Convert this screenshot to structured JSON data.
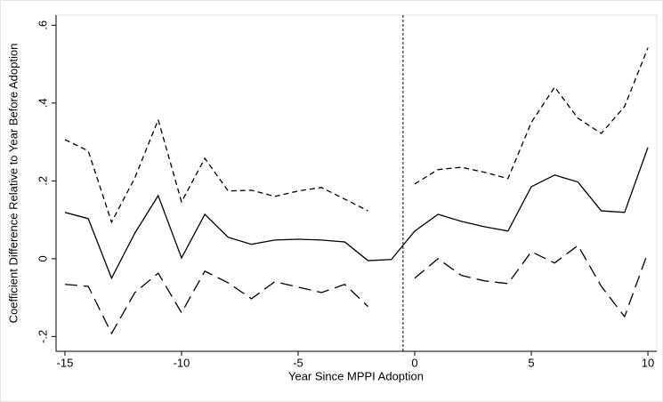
{
  "chart_data": {
    "type": "line",
    "x_label": "Year Since MPPI Adoption",
    "y_label": "Coefficient Difference Relative to Year Before Adoption",
    "x": [
      -15,
      -14,
      -13,
      -12,
      -11,
      -10,
      -9,
      -8,
      -7,
      -6,
      -5,
      -4,
      -3,
      -2,
      -1,
      0,
      1,
      2,
      3,
      4,
      5,
      6,
      7,
      8,
      9,
      10
    ],
    "series": [
      {
        "color": "#000000",
        "dash": "solid",
        "values": [
          0.119,
          0.103,
          -0.05,
          0.066,
          0.162,
          0.002,
          0.114,
          0.055,
          0.037,
          0.048,
          0.05,
          0.048,
          0.043,
          -0.005,
          -0.002,
          0.071,
          0.114,
          0.096,
          0.082,
          0.071,
          0.185,
          0.215,
          0.197,
          0.123,
          0.119,
          0.286
        ]
      },
      {
        "color": "#000000",
        "dash": "short",
        "values": [
          0.306,
          0.277,
          0.094,
          0.208,
          0.357,
          0.146,
          0.258,
          0.174,
          0.176,
          0.16,
          0.174,
          0.183,
          0.153,
          0.123,
          null,
          0.192,
          0.229,
          0.235,
          0.222,
          0.206,
          0.35,
          0.441,
          0.361,
          0.322,
          0.391,
          0.542
        ]
      },
      {
        "color": "#000000",
        "dash": "long",
        "values": [
          -0.066,
          -0.071,
          -0.192,
          -0.087,
          -0.037,
          -0.139,
          -0.032,
          -0.062,
          -0.103,
          -0.059,
          -0.073,
          -0.087,
          -0.066,
          -0.123,
          null,
          -0.05,
          0.0,
          -0.043,
          -0.057,
          -0.064,
          0.018,
          -0.011,
          0.034,
          -0.071,
          -0.149,
          0.016
        ]
      }
    ],
    "vline": -0.5,
    "xlim": [
      -15.38,
      10.38
    ],
    "ylim": [
      -0.238,
      0.626
    ],
    "xticks": [
      -15,
      -10,
      -5,
      0,
      5,
      10
    ],
    "yticks": [
      {
        "value": -0.2,
        "label": "-.2"
      },
      0,
      {
        "value": 0.2,
        "label": ".2"
      },
      {
        "value": 0.4,
        "label": ".4"
      },
      {
        "value": 0.6,
        "label": ".6"
      }
    ]
  }
}
